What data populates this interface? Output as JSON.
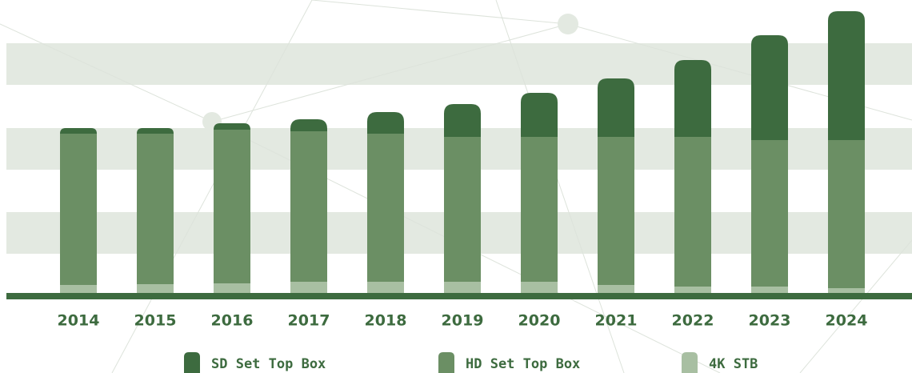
{
  "chart_data": {
    "type": "stacked_bar",
    "categories": [
      "2014",
      "2015",
      "2016",
      "2017",
      "2018",
      "2019",
      "2020",
      "2021",
      "2022",
      "2023",
      "2024"
    ],
    "series": [
      {
        "name": "4K STB",
        "color": "#a8bfa2",
        "values": [
          10,
          11,
          12,
          14,
          14,
          14,
          14,
          10,
          8,
          8,
          6
        ]
      },
      {
        "name": "HD Set Top Box",
        "color": "#6b8f64",
        "values": [
          189,
          188,
          192,
          188,
          185,
          181,
          181,
          185,
          187,
          183,
          185
        ]
      },
      {
        "name": "SD Set Top Box",
        "color": "#3d6b3f",
        "values": [
          7,
          7,
          8,
          15,
          27,
          41,
          55,
          73,
          96,
          131,
          161
        ]
      }
    ],
    "legend_order": [
      2,
      1,
      0
    ],
    "ylim": [
      0,
      360
    ]
  }
}
